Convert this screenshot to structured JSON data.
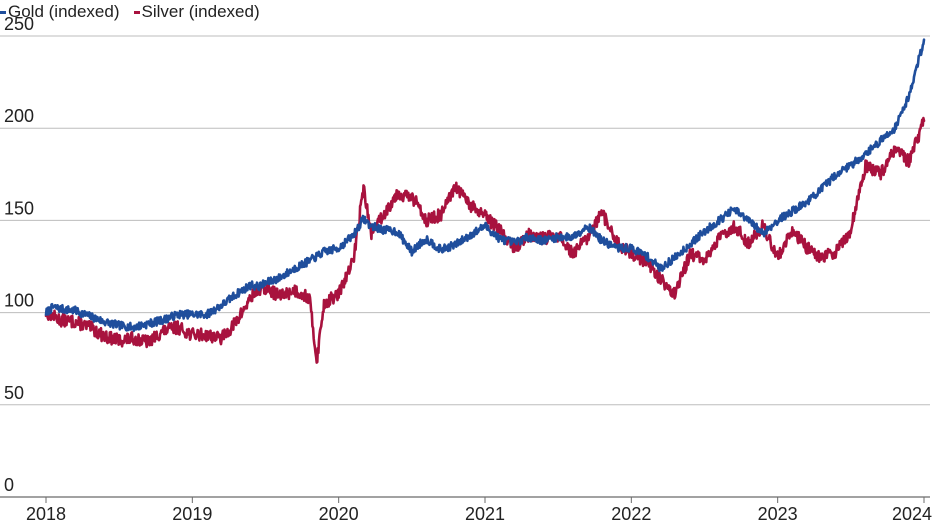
{
  "chart_data": {
    "type": "line",
    "title": "",
    "xlabel": "",
    "ylabel": "",
    "ylim": [
      0,
      250
    ],
    "yticks": [
      0,
      50,
      100,
      150,
      200,
      250
    ],
    "xlim": [
      2018.0,
      2024.0
    ],
    "xticks": [
      2018,
      2019,
      2020,
      2021,
      2022,
      2023,
      2024
    ],
    "grid": "horizontal",
    "legend": "top-left",
    "series": [
      {
        "name": "Gold (indexed)",
        "color": "#1F4E9C",
        "x": [
          2018.0,
          2018.05,
          2018.1,
          2018.2,
          2018.3,
          2018.4,
          2018.5,
          2018.6,
          2018.7,
          2018.8,
          2018.9,
          2019.0,
          2019.1,
          2019.2,
          2019.3,
          2019.4,
          2019.45,
          2019.5,
          2019.6,
          2019.7,
          2019.8,
          2019.9,
          2020.0,
          2020.1,
          2020.17,
          2020.22,
          2020.3,
          2020.4,
          2020.5,
          2020.55,
          2020.6,
          2020.7,
          2020.8,
          2020.9,
          2021.0,
          2021.1,
          2021.2,
          2021.3,
          2021.4,
          2021.5,
          2021.6,
          2021.7,
          2021.8,
          2021.9,
          2022.0,
          2022.1,
          2022.2,
          2022.3,
          2022.4,
          2022.5,
          2022.6,
          2022.7,
          2022.8,
          2022.9,
          2023.0,
          2023.1,
          2023.2,
          2023.3,
          2023.4,
          2023.5,
          2023.6,
          2023.7,
          2023.8,
          2023.9,
          2024.0
        ],
        "values": [
          100,
          103,
          102,
          101,
          98,
          95,
          93,
          92,
          94,
          96,
          99,
          99,
          99,
          104,
          110,
          115,
          114,
          116,
          119,
          124,
          128,
          133,
          135,
          142,
          151,
          147,
          145,
          144,
          133,
          137,
          140,
          134,
          137,
          142,
          147,
          140,
          138,
          141,
          139,
          141,
          141,
          147,
          139,
          135,
          135,
          131,
          124,
          130,
          137,
          144,
          150,
          156,
          150,
          143,
          150,
          155,
          160,
          167,
          175,
          180,
          186,
          193,
          200,
          218,
          248
        ]
      },
      {
        "name": "Silver (indexed)",
        "color": "#A8123E",
        "x": [
          2018.0,
          2018.05,
          2018.1,
          2018.2,
          2018.3,
          2018.4,
          2018.5,
          2018.6,
          2018.7,
          2018.8,
          2018.9,
          2019.0,
          2019.1,
          2019.2,
          2019.3,
          2019.4,
          2019.45,
          2019.5,
          2019.6,
          2019.7,
          2019.8,
          2019.85,
          2019.9,
          2020.0,
          2020.1,
          2020.17,
          2020.22,
          2020.3,
          2020.4,
          2020.5,
          2020.55,
          2020.6,
          2020.7,
          2020.8,
          2020.9,
          2021.0,
          2021.1,
          2021.2,
          2021.3,
          2021.4,
          2021.5,
          2021.6,
          2021.7,
          2021.8,
          2021.9,
          2022.0,
          2022.1,
          2022.2,
          2022.3,
          2022.4,
          2022.5,
          2022.6,
          2022.7,
          2022.8,
          2022.9,
          2023.0,
          2023.1,
          2023.2,
          2023.3,
          2023.4,
          2023.5,
          2023.6,
          2023.7,
          2023.8,
          2023.9,
          2024.0
        ],
        "values": [
          100,
          98,
          96,
          95,
          92,
          87,
          85,
          86,
          84,
          90,
          92,
          88,
          88,
          86,
          95,
          108,
          112,
          113,
          109,
          112,
          108,
          74,
          105,
          110,
          128,
          168,
          143,
          152,
          165,
          162,
          158,
          150,
          153,
          168,
          158,
          152,
          145,
          135,
          142,
          140,
          142,
          132,
          140,
          154,
          138,
          132,
          128,
          118,
          110,
          132,
          128,
          140,
          147,
          138,
          147,
          130,
          145,
          135,
          130,
          133,
          145,
          180,
          175,
          188,
          182,
          204
        ]
      }
    ]
  }
}
